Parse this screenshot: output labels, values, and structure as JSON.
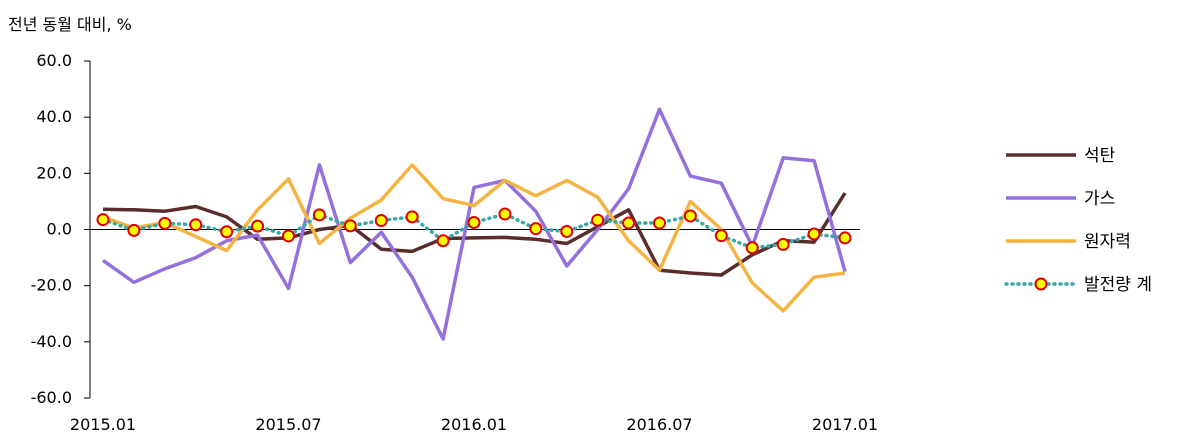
{
  "chart_data": {
    "type": "line",
    "title": "",
    "ylabel": "전년 동월 대비, %",
    "xlabel": "",
    "ylim": [
      -60,
      60
    ],
    "yticks": [
      60,
      40,
      20,
      0,
      -20,
      -40,
      -60
    ],
    "ytick_labels": [
      "60.0",
      "40.0",
      "20.0",
      "0.0",
      "-20.0",
      "-40.0",
      "-60.0"
    ],
    "x": [
      "2015.01",
      "2015.02",
      "2015.03",
      "2015.04",
      "2015.05",
      "2015.06",
      "2015.07",
      "2015.08",
      "2015.09",
      "2015.10",
      "2015.11",
      "2015.12",
      "2016.01",
      "2016.02",
      "2016.03",
      "2016.04",
      "2016.05",
      "2016.06",
      "2016.07",
      "2016.08",
      "2016.09",
      "2016.10",
      "2016.11",
      "2016.12",
      "2017.01"
    ],
    "xtick_labels": [
      "2015.01",
      "2015.07",
      "2016.01",
      "2016.07",
      "2017.01"
    ],
    "grid": false,
    "legend_position": "right",
    "series": [
      {
        "name": "석탄",
        "color": "#5a2d2d",
        "style": "solid",
        "values": [
          7.2,
          7.0,
          6.5,
          8.2,
          4.5,
          -3.5,
          -3.0,
          0.0,
          1.5,
          -7.0,
          -7.8,
          -3.2,
          -3.0,
          -2.8,
          -3.5,
          -5.0,
          1.0,
          7.0,
          -14.5,
          -15.5,
          -16.2,
          -9.0,
          -4.0,
          -4.5,
          13.0
        ]
      },
      {
        "name": "가스",
        "color": "#9370db",
        "style": "solid",
        "values": [
          -11.0,
          -18.8,
          -14.0,
          -10.0,
          -4.0,
          -2.0,
          -21.0,
          23.0,
          -11.8,
          -1.0,
          -17.0,
          -39.0,
          15.0,
          17.5,
          6.5,
          -13.0,
          0.0,
          14.5,
          42.8,
          19.0,
          16.5,
          -6.0,
          25.5,
          24.5,
          -15.0
        ]
      },
      {
        "name": "원자력",
        "color": "#f5b342",
        "style": "solid",
        "values": [
          4.5,
          0.5,
          2.5,
          -2.5,
          -7.5,
          7.0,
          18.0,
          -5.0,
          4.0,
          10.5,
          23.0,
          11.0,
          8.5,
          17.5,
          12.0,
          17.5,
          11.5,
          -4.0,
          -14.5,
          10.0,
          0.0,
          -19.0,
          -29.0,
          -17.0,
          -15.5
        ]
      },
      {
        "name": "발전량 계",
        "color": "#3aa6a6",
        "style": "dotted",
        "marker_fill": "#ffff00",
        "marker_edge": "#e00000",
        "values": [
          3.5,
          -0.3,
          2.2,
          1.7,
          -0.8,
          1.2,
          -2.3,
          5.2,
          1.3,
          3.2,
          4.5,
          -4.0,
          2.5,
          5.5,
          0.3,
          -0.7,
          3.3,
          2.3,
          2.3,
          4.8,
          -2.2,
          -6.5,
          -5.3,
          -1.6,
          -3.0
        ]
      }
    ]
  }
}
